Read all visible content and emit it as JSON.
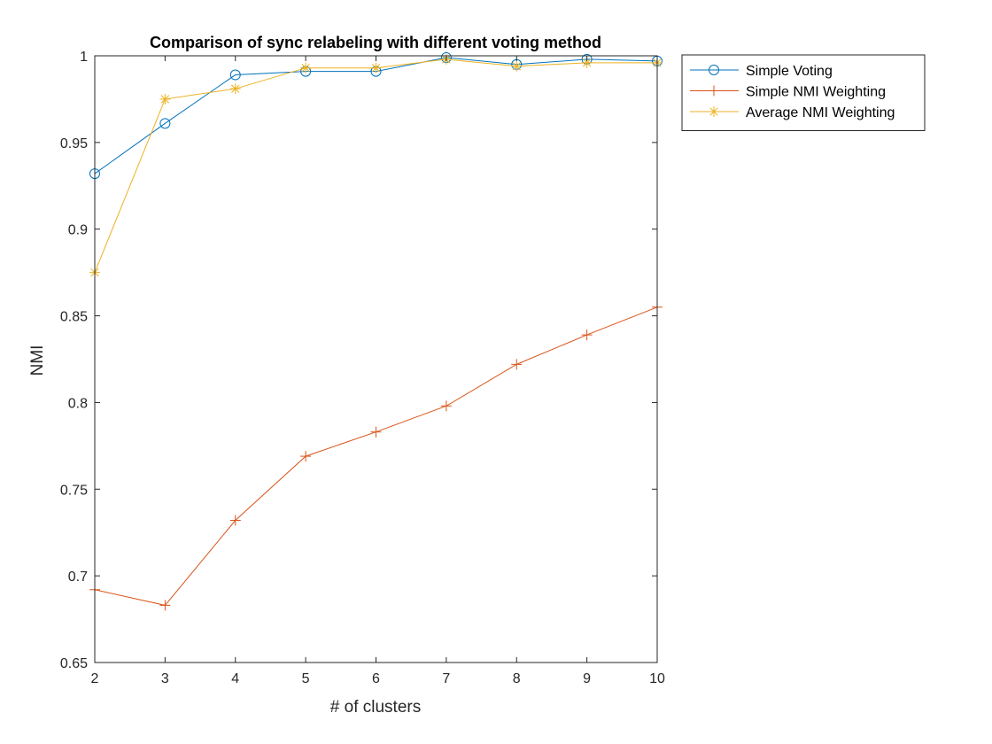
{
  "chart_data": {
    "type": "line",
    "title": "Comparison of sync relabeling with different voting method",
    "xlabel": "# of clusters",
    "ylabel": "NMI",
    "xlim": [
      2,
      10
    ],
    "ylim": [
      0.65,
      1
    ],
    "x_ticks": [
      "2",
      "3",
      "4",
      "5",
      "6",
      "7",
      "8",
      "9",
      "10"
    ],
    "y_ticks": [
      "0.65",
      "0.7",
      "0.75",
      "0.8",
      "0.85",
      "0.9",
      "0.95",
      "1"
    ],
    "x": [
      2,
      3,
      4,
      5,
      6,
      7,
      8,
      9,
      10
    ],
    "grid": false,
    "legend_position": "outside-top-right",
    "series": [
      {
        "name": "Simple Voting",
        "color": "#0072BD",
        "marker": "circle",
        "values": [
          0.932,
          0.961,
          0.989,
          0.991,
          0.991,
          0.999,
          0.995,
          0.998,
          0.997
        ]
      },
      {
        "name": "Simple NMI Weighting",
        "color": "#D95319",
        "marker": "plus",
        "values": [
          0.692,
          0.683,
          0.732,
          0.769,
          0.783,
          0.798,
          0.822,
          0.839,
          0.855
        ]
      },
      {
        "name": "Average NMI Weighting",
        "color": "#EDB120",
        "marker": "asterisk",
        "values": [
          0.875,
          0.975,
          0.981,
          0.993,
          0.993,
          0.998,
          0.994,
          0.996,
          0.996
        ]
      }
    ]
  }
}
